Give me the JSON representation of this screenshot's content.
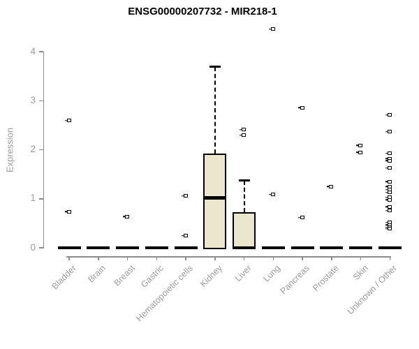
{
  "chart_data": {
    "type": "boxplot",
    "title": "ENSG00000207732 - MIR218-1",
    "xlabel": "",
    "ylabel": "Expression",
    "ylim": [
      0,
      4.6
    ],
    "yticks": [
      0,
      1,
      2,
      3,
      4
    ],
    "grid": false,
    "legend_position": "none",
    "categories": [
      "Bladder",
      "Brain",
      "Breast",
      "Gastric",
      "Hematopoietic cells",
      "Kidney",
      "Liver",
      "Lung",
      "Pancreas",
      "Prostate",
      "Skin",
      "Unknown / Other"
    ],
    "boxes": [
      {
        "category": "Bladder",
        "whisker_low": 0,
        "q1": 0,
        "median": 0,
        "q3": 0,
        "whisker_high": 0,
        "outliers": [
          2.59,
          0.73
        ]
      },
      {
        "category": "Brain",
        "whisker_low": 0,
        "q1": 0,
        "median": 0,
        "q3": 0,
        "whisker_high": 0,
        "outliers": []
      },
      {
        "category": "Breast",
        "whisker_low": 0,
        "q1": 0,
        "median": 0,
        "q3": 0,
        "whisker_high": 0,
        "outliers": [
          0.63
        ]
      },
      {
        "category": "Gastric",
        "whisker_low": 0,
        "q1": 0,
        "median": 0,
        "q3": 0,
        "whisker_high": 0,
        "outliers": []
      },
      {
        "category": "Hematopoietic cells",
        "whisker_low": 0,
        "q1": 0,
        "median": 0,
        "q3": 0,
        "whisker_high": 0,
        "outliers": [
          1.05,
          0.24
        ]
      },
      {
        "category": "Kidney",
        "whisker_low": 0,
        "q1": 0,
        "median": 1.02,
        "q3": 1.92,
        "whisker_high": 3.7,
        "outliers": []
      },
      {
        "category": "Liver",
        "whisker_low": 0,
        "q1": 0,
        "median": 0,
        "q3": 0.73,
        "whisker_high": 1.38,
        "outliers": [
          2.4,
          2.29
        ]
      },
      {
        "category": "Lung",
        "whisker_low": 0,
        "q1": 0,
        "median": 0,
        "q3": 0,
        "whisker_high": 0,
        "outliers": [
          4.45,
          1.08
        ]
      },
      {
        "category": "Pancreas",
        "whisker_low": 0,
        "q1": 0,
        "median": 0,
        "q3": 0,
        "whisker_high": 0,
        "outliers": [
          2.85,
          0.61
        ]
      },
      {
        "category": "Prostate",
        "whisker_low": 0,
        "q1": 0,
        "median": 0,
        "q3": 0,
        "whisker_high": 0,
        "outliers": [
          1.24
        ]
      },
      {
        "category": "Skin",
        "whisker_low": 0,
        "q1": 0,
        "median": 0,
        "q3": 0,
        "whisker_high": 0,
        "outliers": [
          2.08,
          1.94
        ]
      },
      {
        "category": "Unknown / Other",
        "whisker_low": 0,
        "q1": 0,
        "median": 0,
        "q3": 0,
        "whisker_high": 0,
        "outliers": [
          2.7,
          2.36,
          1.92,
          1.81,
          1.77,
          1.62,
          1.34,
          1.24,
          1.18,
          1.12,
          1.02,
          0.97,
          0.83,
          0.75,
          0.51,
          0.46,
          0.41,
          0.38
        ]
      }
    ],
    "colors": {
      "box_fill": "#EBE7CD",
      "box_border": "#000000",
      "axis_line": "#8C8C8C",
      "tick_text": "#9A9A9A",
      "title_text": "#000000",
      "background": "#FFFFFF"
    }
  }
}
